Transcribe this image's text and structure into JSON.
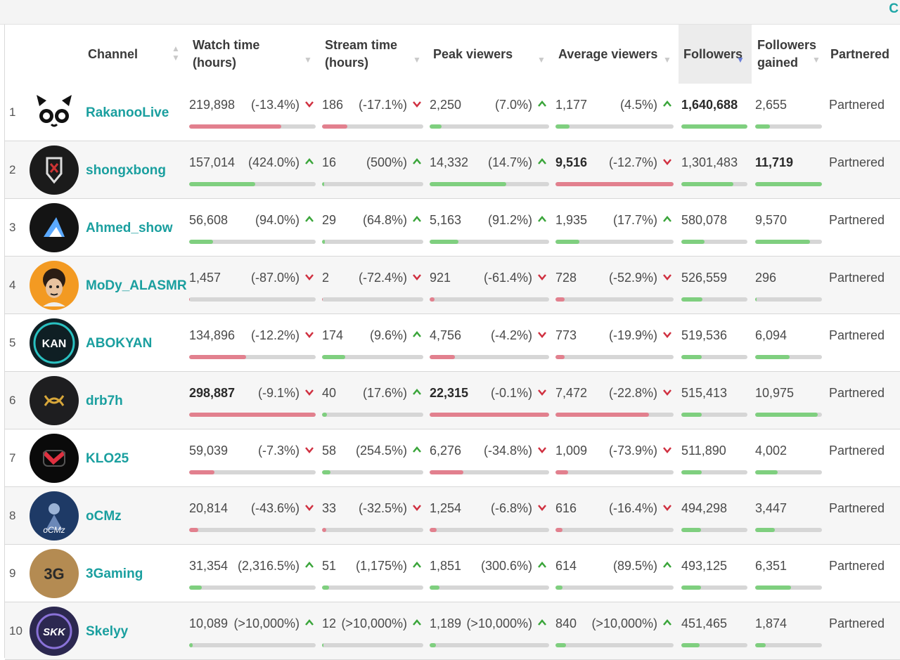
{
  "corner_glyph": "C",
  "headers": {
    "channel": "Channel",
    "watch_time": "Watch time\n(hours)",
    "stream_time": "Stream time\n(hours)",
    "peak_viewers": "Peak viewers",
    "avg_viewers": "Average viewers",
    "followers": "Followers",
    "followers_gained": "Followers\ngained",
    "partnered": "Partnered"
  },
  "colors": {
    "link": "#1a9f9f",
    "up": "#3aa53a",
    "down": "#d03040",
    "bar_green": "#7fcf7f",
    "bar_red": "#e2808e"
  },
  "rows": [
    {
      "rank": "1",
      "channel": "RakanooLive",
      "avatar": "panda-face-avatar",
      "watch": "219,898",
      "watch_pct": "(-13.4%)",
      "watch_dir": "down",
      "watch_level": 0.73,
      "stream": "186",
      "stream_pct": "(-17.1%)",
      "stream_dir": "down",
      "stream_level": 0.25,
      "peak": "2,250",
      "peak_pct": "(7.0%)",
      "peak_dir": "up",
      "peak_level": 0.1,
      "avg": "1,177",
      "avg_pct": "(4.5%)",
      "avg_dir": "up",
      "avg_level": 0.12,
      "followers": "1,640,688",
      "followers_level": 1.0,
      "gained": "2,655",
      "gained_level": 0.22,
      "partnered": "Partnered"
    },
    {
      "rank": "2",
      "channel": "shongxbong",
      "avatar": "shield-crest-avatar",
      "watch": "157,014",
      "watch_pct": "(424.0%)",
      "watch_dir": "up",
      "watch_level": 0.52,
      "stream": "16",
      "stream_pct": "(500%)",
      "stream_dir": "up",
      "stream_level": 0.02,
      "peak": "14,332",
      "peak_pct": "(14.7%)",
      "peak_dir": "up",
      "peak_level": 0.64,
      "avg": "9,516",
      "avg_pct": "(-12.7%)",
      "avg_dir": "down",
      "avg_level": 1.0,
      "followers": "1,301,483",
      "followers_level": 0.79,
      "gained": "11,719",
      "gained_level": 1.0,
      "partnered": "Partnered"
    },
    {
      "rank": "3",
      "channel": "Ahmed_show",
      "avatar": "mountain-logo-avatar",
      "watch": "56,608",
      "watch_pct": "(94.0%)",
      "watch_dir": "up",
      "watch_level": 0.19,
      "stream": "29",
      "stream_pct": "(64.8%)",
      "stream_dir": "up",
      "stream_level": 0.03,
      "peak": "5,163",
      "peak_pct": "(91.2%)",
      "peak_dir": "up",
      "peak_level": 0.24,
      "avg": "1,935",
      "avg_pct": "(17.7%)",
      "avg_dir": "up",
      "avg_level": 0.2,
      "followers": "580,078",
      "followers_level": 0.35,
      "gained": "9,570",
      "gained_level": 0.82,
      "partnered": "Partnered"
    },
    {
      "rank": "4",
      "channel": "MoDy_ALASMR",
      "avatar": "cartoon-face-avatar",
      "watch": "1,457",
      "watch_pct": "(-87.0%)",
      "watch_dir": "down",
      "watch_level": 0.005,
      "stream": "2",
      "stream_pct": "(-72.4%)",
      "stream_dir": "down",
      "stream_level": 0.003,
      "peak": "921",
      "peak_pct": "(-61.4%)",
      "peak_dir": "down",
      "peak_level": 0.04,
      "avg": "728",
      "avg_pct": "(-52.9%)",
      "avg_dir": "down",
      "avg_level": 0.08,
      "followers": "526,559",
      "followers_level": 0.32,
      "gained": "296",
      "gained_level": 0.02,
      "partnered": "Partnered"
    },
    {
      "rank": "5",
      "channel": "ABOKYAN",
      "avatar": "kan-logo-avatar",
      "watch": "134,896",
      "watch_pct": "(-12.2%)",
      "watch_dir": "down",
      "watch_level": 0.45,
      "stream": "174",
      "stream_pct": "(9.6%)",
      "stream_dir": "up",
      "stream_level": 0.23,
      "peak": "4,756",
      "peak_pct": "(-4.2%)",
      "peak_dir": "down",
      "peak_level": 0.21,
      "avg": "773",
      "avg_pct": "(-19.9%)",
      "avg_dir": "down",
      "avg_level": 0.08,
      "followers": "519,536",
      "followers_level": 0.31,
      "gained": "6,094",
      "gained_level": 0.52,
      "partnered": "Partnered"
    },
    {
      "rank": "6",
      "channel": "drb7h",
      "avatar": "gold-emblem-avatar",
      "watch": "298,887",
      "watch_pct": "(-9.1%)",
      "watch_dir": "down",
      "watch_level": 1.0,
      "stream": "40",
      "stream_pct": "(17.6%)",
      "stream_dir": "up",
      "stream_level": 0.05,
      "peak": "22,315",
      "peak_pct": "(-0.1%)",
      "peak_dir": "down",
      "peak_level": 1.0,
      "avg": "7,472",
      "avg_pct": "(-22.8%)",
      "avg_dir": "down",
      "avg_level": 0.79,
      "followers": "515,413",
      "followers_level": 0.31,
      "gained": "10,975",
      "gained_level": 0.94,
      "partnered": "Partnered"
    },
    {
      "rank": "7",
      "channel": "KLO25",
      "avatar": "red-logo-avatar",
      "watch": "59,039",
      "watch_pct": "(-7.3%)",
      "watch_dir": "down",
      "watch_level": 0.2,
      "stream": "58",
      "stream_pct": "(254.5%)",
      "stream_dir": "up",
      "stream_level": 0.08,
      "peak": "6,276",
      "peak_pct": "(-34.8%)",
      "peak_dir": "down",
      "peak_level": 0.28,
      "avg": "1,009",
      "avg_pct": "(-73.9%)",
      "avg_dir": "down",
      "avg_level": 0.11,
      "followers": "511,890",
      "followers_level": 0.31,
      "gained": "4,002",
      "gained_level": 0.34,
      "partnered": "Partnered"
    },
    {
      "rank": "8",
      "channel": "oCMz",
      "avatar": "character-avatar",
      "watch": "20,814",
      "watch_pct": "(-43.6%)",
      "watch_dir": "down",
      "watch_level": 0.07,
      "stream": "33",
      "stream_pct": "(-32.5%)",
      "stream_dir": "down",
      "stream_level": 0.04,
      "peak": "1,254",
      "peak_pct": "(-6.8%)",
      "peak_dir": "down",
      "peak_level": 0.06,
      "avg": "616",
      "avg_pct": "(-16.4%)",
      "avg_dir": "down",
      "avg_level": 0.06,
      "followers": "494,298",
      "followers_level": 0.3,
      "gained": "3,447",
      "gained_level": 0.29,
      "partnered": "Partnered"
    },
    {
      "rank": "9",
      "channel": "3Gaming",
      "avatar": "3g-logo-avatar",
      "watch": "31,354",
      "watch_pct": "(2,316.5%)",
      "watch_dir": "up",
      "watch_level": 0.1,
      "stream": "51",
      "stream_pct": "(1,175%)",
      "stream_dir": "up",
      "stream_level": 0.07,
      "peak": "1,851",
      "peak_pct": "(300.6%)",
      "peak_dir": "up",
      "peak_level": 0.08,
      "avg": "614",
      "avg_pct": "(89.5%)",
      "avg_dir": "up",
      "avg_level": 0.06,
      "followers": "493,125",
      "followers_level": 0.3,
      "gained": "6,351",
      "gained_level": 0.54,
      "partnered": "Partnered"
    },
    {
      "rank": "10",
      "channel": "Skelyy",
      "avatar": "skk-logo-avatar",
      "watch": "10,089",
      "watch_pct": "(>10,000%)",
      "watch_dir": "up",
      "watch_level": 0.03,
      "stream": "12",
      "stream_pct": "(>10,000%)",
      "stream_dir": "up",
      "stream_level": 0.015,
      "peak": "1,189",
      "peak_pct": "(>10,000%)",
      "peak_dir": "up",
      "peak_level": 0.05,
      "avg": "840",
      "avg_pct": "(>10,000%)",
      "avg_dir": "up",
      "avg_level": 0.09,
      "followers": "451,465",
      "followers_level": 0.28,
      "gained": "1,874",
      "gained_level": 0.16,
      "partnered": "Partnered"
    }
  ],
  "bold_cells": {
    "watch": [
      "298,887"
    ],
    "peak": [
      "22,315"
    ],
    "avg": [
      "9,516"
    ],
    "followers": [
      "1,640,688"
    ],
    "gained": [
      "11,719"
    ]
  }
}
